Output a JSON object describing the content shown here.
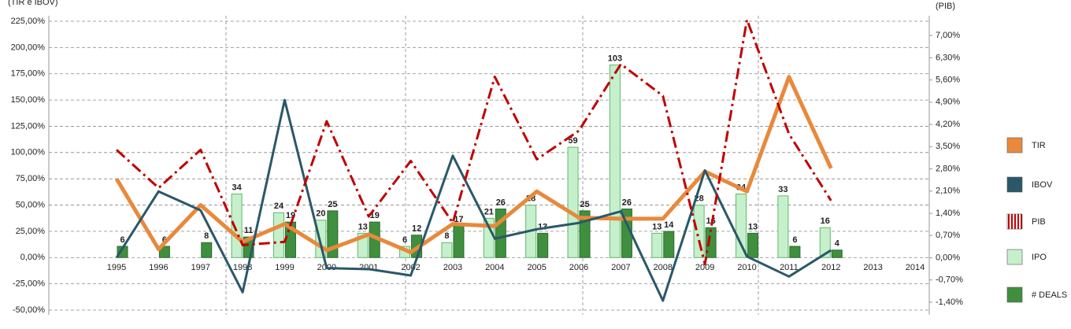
{
  "chart_data": {
    "type": "combo",
    "y_label": "(TIR e IBOV)",
    "y2_label": "(PIB)",
    "categories": [
      "1995",
      "1996",
      "1997",
      "1998",
      "1999",
      "2000",
      "2001",
      "2002",
      "2003",
      "2004",
      "2005",
      "2006",
      "2007",
      "2008",
      "2009",
      "2010",
      "2011",
      "2012",
      "2013",
      "2014"
    ],
    "ylim": [
      -50,
      225
    ],
    "yticks": [
      {
        "value": -50,
        "label": "-50,00%"
      },
      {
        "value": -25,
        "label": "-25,00%"
      },
      {
        "value": 0,
        "label": "0,00%"
      },
      {
        "value": 25,
        "label": "25,00%"
      },
      {
        "value": 50,
        "label": "50,00%"
      },
      {
        "value": 75,
        "label": "75,00%"
      },
      {
        "value": 100,
        "label": "100,00%"
      },
      {
        "value": 125,
        "label": "125,00%"
      },
      {
        "value": 150,
        "label": "150,00%"
      },
      {
        "value": 175,
        "label": "175,00%"
      },
      {
        "value": 200,
        "label": "200,00%"
      },
      {
        "value": 225,
        "label": "225,00%"
      }
    ],
    "y2lim": [
      -1.65,
      7.45
    ],
    "y2ticks": [
      {
        "value": -1.4,
        "label": "-1,40%"
      },
      {
        "value": -0.7,
        "label": "-0,70%"
      },
      {
        "value": 0,
        "label": "0,00%"
      },
      {
        "value": 0.7,
        "label": "0,70%"
      },
      {
        "value": 1.4,
        "label": "1,40%"
      },
      {
        "value": 2.1,
        "label": "2,10%"
      },
      {
        "value": 2.8,
        "label": "2,80%"
      },
      {
        "value": 3.5,
        "label": "3,50%"
      },
      {
        "value": 4.2,
        "label": "4,20%"
      },
      {
        "value": 4.9,
        "label": "4,90%"
      },
      {
        "value": 5.6,
        "label": "5,60%"
      },
      {
        "value": 6.3,
        "label": "6,30%"
      },
      {
        "value": 7,
        "label": "7,00%"
      }
    ],
    "y3lim": [
      -28.1,
      126.4
    ],
    "grid": true,
    "legend": "right",
    "series": [
      {
        "name": "TIR",
        "type": "line",
        "color": "#e8893c",
        "axis": "y",
        "values": [
          75,
          8,
          50,
          15,
          32,
          7,
          22,
          5,
          32,
          30,
          63,
          38,
          37,
          37,
          82,
          63,
          172,
          85,
          null,
          null
        ]
      },
      {
        "name": "IBOV",
        "type": "line",
        "color": "#2a5868",
        "axis": "y",
        "values": [
          0,
          63,
          45,
          -33,
          150,
          -10,
          -11,
          -17,
          97,
          18,
          27,
          33,
          44,
          -41,
          83,
          1,
          -18,
          7,
          null,
          null
        ]
      },
      {
        "name": "PIB",
        "type": "line",
        "color": "#c00000",
        "axis": "y2",
        "values": [
          3.4,
          2.2,
          3.4,
          0.4,
          0.5,
          4.3,
          1.3,
          3.05,
          1.1,
          5.7,
          3.1,
          4.0,
          6.1,
          5.1,
          -0.2,
          7.5,
          3.9,
          1.8,
          null,
          null
        ]
      },
      {
        "name": "IPO",
        "type": "bar",
        "color": "#c6f0cc",
        "axis": "y3",
        "values": [
          null,
          null,
          null,
          34,
          24,
          20,
          13,
          6,
          8,
          21,
          28,
          59,
          103,
          13,
          28,
          34,
          33,
          16,
          null,
          null
        ]
      },
      {
        "name": "# DEALS",
        "type": "bar",
        "color": "#3f8f3f",
        "axis": "y3",
        "values": [
          6,
          6,
          8,
          11,
          19,
          25,
          19,
          12,
          17,
          26,
          13,
          25,
          26,
          14,
          16,
          13,
          6,
          4,
          null,
          null
        ]
      }
    ]
  }
}
